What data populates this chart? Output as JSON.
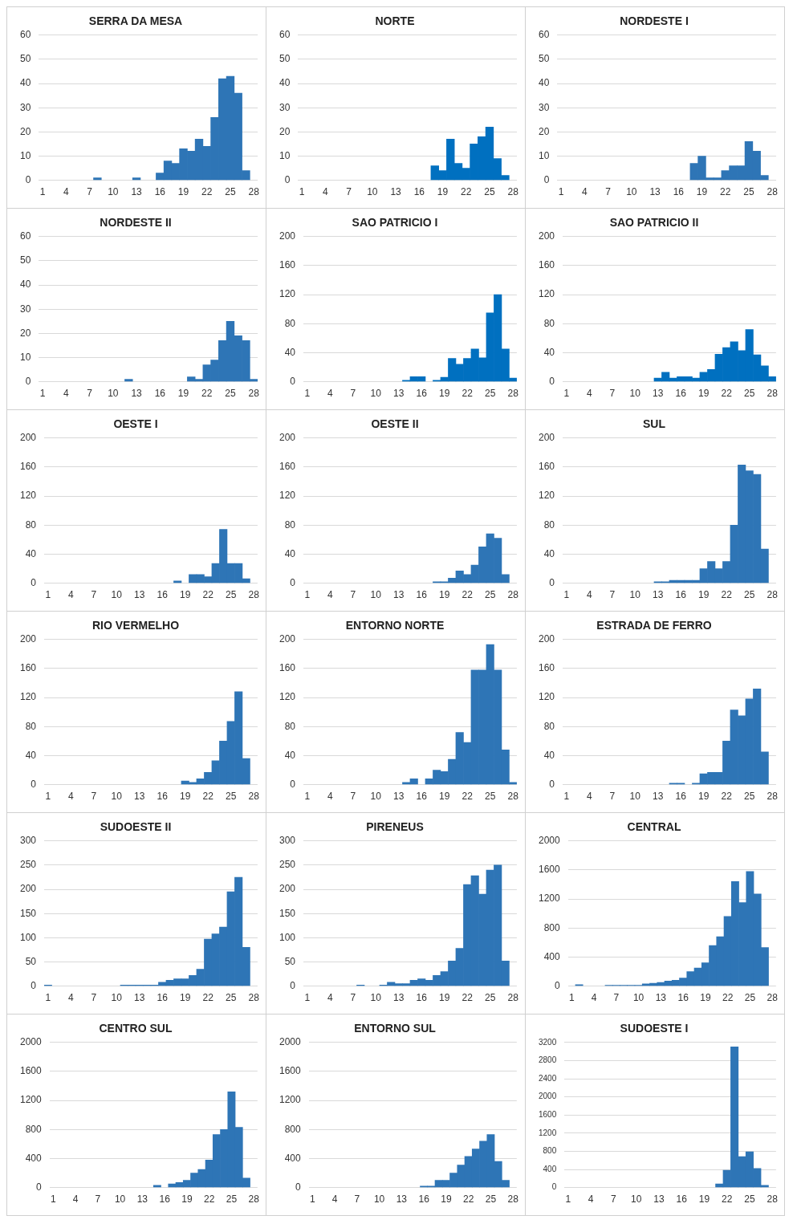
{
  "chart_data": [
    {
      "type": "bar",
      "title": "SERRA DA MESA",
      "color": "#2e75b6",
      "grid": "y",
      "ylim": [
        0,
        60
      ],
      "yticks": [
        0,
        10,
        20,
        30,
        40,
        50,
        60
      ],
      "categories": [
        "1",
        null,
        null,
        "4",
        null,
        null,
        "7",
        null,
        null,
        "10",
        null,
        null,
        "13",
        null,
        null,
        "16",
        null,
        null,
        "19",
        null,
        null,
        "22",
        null,
        null,
        "25",
        null,
        null,
        "28"
      ],
      "values": [
        null,
        null,
        null,
        null,
        null,
        null,
        null,
        1,
        null,
        null,
        null,
        null,
        1,
        null,
        null,
        3,
        8,
        7,
        13,
        12,
        17,
        14,
        26,
        42,
        43,
        36,
        4,
        null
      ]
    },
    {
      "type": "bar",
      "title": "NORTE",
      "color": "#0070c0",
      "grid": "y",
      "ylim": [
        0,
        60
      ],
      "yticks": [
        0,
        10,
        20,
        30,
        40,
        50,
        60
      ],
      "categories": [
        "1",
        null,
        null,
        "4",
        null,
        null,
        "7",
        null,
        null,
        "10",
        null,
        null,
        "13",
        null,
        null,
        "16",
        null,
        null,
        "19",
        null,
        null,
        "22",
        null,
        null,
        "25",
        null,
        null,
        "28"
      ],
      "values": [
        null,
        null,
        null,
        null,
        null,
        null,
        null,
        null,
        null,
        null,
        null,
        null,
        null,
        null,
        null,
        null,
        null,
        6,
        4,
        17,
        7,
        5,
        15,
        18,
        22,
        9,
        2,
        null
      ]
    },
    {
      "type": "bar",
      "title": "NORDESTE I",
      "color": "#2e75b6",
      "grid": "y",
      "ylim": [
        0,
        60
      ],
      "yticks": [
        0,
        10,
        20,
        30,
        40,
        50,
        60
      ],
      "categories": [
        "1",
        null,
        null,
        "4",
        null,
        null,
        "7",
        null,
        null,
        "10",
        null,
        null,
        "13",
        null,
        null,
        "16",
        null,
        null,
        "19",
        null,
        null,
        "22",
        null,
        null,
        "25",
        null,
        null,
        "28"
      ],
      "values": [
        null,
        null,
        null,
        null,
        null,
        null,
        null,
        null,
        null,
        null,
        null,
        null,
        null,
        null,
        null,
        null,
        null,
        7,
        10,
        1,
        1,
        4,
        6,
        6,
        16,
        12,
        2,
        null
      ]
    },
    {
      "type": "bar",
      "title": "NORDESTE II",
      "color": "#2e75b6",
      "grid": "y",
      "ylim": [
        0,
        60
      ],
      "yticks": [
        0,
        10,
        20,
        30,
        40,
        50,
        60
      ],
      "categories": [
        "1",
        null,
        null,
        "4",
        null,
        null,
        "7",
        null,
        null,
        "10",
        null,
        null,
        "13",
        null,
        null,
        "16",
        null,
        null,
        "19",
        null,
        null,
        "22",
        null,
        null,
        "25",
        null,
        null,
        "28"
      ],
      "values": [
        null,
        null,
        null,
        null,
        null,
        null,
        null,
        null,
        null,
        null,
        null,
        1,
        null,
        null,
        null,
        null,
        null,
        null,
        null,
        2,
        1,
        7,
        9,
        17,
        25,
        19,
        17,
        1
      ]
    },
    {
      "type": "bar",
      "title": "SAO PATRICIO I",
      "color": "#0070c0",
      "grid": "y",
      "ylim": [
        0,
        200
      ],
      "yticks": [
        0,
        40,
        80,
        120,
        160,
        200
      ],
      "categories": [
        "1",
        null,
        null,
        "4",
        null,
        null,
        "7",
        null,
        null,
        "10",
        null,
        null,
        "13",
        null,
        null,
        "16",
        null,
        null,
        "19",
        null,
        null,
        "22",
        null,
        null,
        "25",
        null,
        null,
        "28"
      ],
      "values": [
        null,
        null,
        null,
        null,
        null,
        null,
        null,
        null,
        null,
        null,
        null,
        null,
        null,
        2,
        7,
        7,
        null,
        2,
        6,
        32,
        24,
        32,
        45,
        33,
        95,
        120,
        45,
        5
      ]
    },
    {
      "type": "bar",
      "title": "SAO PATRICIO II",
      "color": "#0070c0",
      "grid": "y",
      "ylim": [
        0,
        200
      ],
      "yticks": [
        0,
        40,
        80,
        120,
        160,
        200
      ],
      "categories": [
        "1",
        null,
        null,
        "4",
        null,
        null,
        "7",
        null,
        null,
        "10",
        null,
        null,
        "13",
        null,
        null,
        "16",
        null,
        null,
        "19",
        null,
        null,
        "22",
        null,
        null,
        "25",
        null,
        null,
        "28"
      ],
      "values": [
        null,
        null,
        null,
        null,
        null,
        null,
        null,
        null,
        null,
        null,
        null,
        null,
        5,
        13,
        5,
        7,
        7,
        5,
        13,
        17,
        38,
        47,
        55,
        43,
        72,
        37,
        22,
        7
      ]
    },
    {
      "type": "bar",
      "title": "OESTE I",
      "color": "#2e75b6",
      "grid": "y",
      "ylim": [
        0,
        200
      ],
      "yticks": [
        0,
        40,
        80,
        120,
        160,
        200
      ],
      "categories": [
        "1",
        null,
        null,
        "4",
        null,
        null,
        "7",
        null,
        null,
        "10",
        null,
        null,
        "13",
        null,
        null,
        "16",
        null,
        null,
        "19",
        null,
        null,
        "22",
        null,
        null,
        "25",
        null,
        null,
        "28"
      ],
      "values": [
        null,
        null,
        null,
        null,
        null,
        null,
        null,
        null,
        null,
        null,
        null,
        null,
        null,
        null,
        null,
        null,
        null,
        3,
        null,
        12,
        12,
        9,
        27,
        74,
        27,
        27,
        6,
        null
      ]
    },
    {
      "type": "bar",
      "title": "OESTE II",
      "color": "#2e75b6",
      "grid": "y",
      "ylim": [
        0,
        200
      ],
      "yticks": [
        0,
        40,
        80,
        120,
        160,
        200
      ],
      "categories": [
        "1",
        null,
        null,
        "4",
        null,
        null,
        "7",
        null,
        null,
        "10",
        null,
        null,
        "13",
        null,
        null,
        "16",
        null,
        null,
        "19",
        null,
        null,
        "22",
        null,
        null,
        "25",
        null,
        null,
        "28"
      ],
      "values": [
        null,
        null,
        null,
        null,
        null,
        null,
        null,
        null,
        null,
        null,
        null,
        null,
        null,
        null,
        null,
        null,
        null,
        2,
        2,
        7,
        17,
        12,
        25,
        50,
        68,
        62,
        12,
        null
      ]
    },
    {
      "type": "bar",
      "title": "SUL",
      "color": "#2e75b6",
      "grid": "y",
      "ylim": [
        0,
        200
      ],
      "yticks": [
        0,
        40,
        80,
        120,
        160,
        200
      ],
      "categories": [
        "1",
        null,
        null,
        "4",
        null,
        null,
        "7",
        null,
        null,
        "10",
        null,
        null,
        "13",
        null,
        null,
        "16",
        null,
        null,
        "19",
        null,
        null,
        "22",
        null,
        null,
        "25",
        null,
        null,
        "28"
      ],
      "values": [
        null,
        null,
        null,
        null,
        null,
        null,
        null,
        null,
        null,
        null,
        null,
        null,
        2,
        2,
        4,
        4,
        4,
        4,
        20,
        30,
        20,
        30,
        80,
        163,
        155,
        150,
        47,
        null
      ]
    },
    {
      "type": "bar",
      "title": "RIO VERMELHO",
      "color": "#2e75b6",
      "grid": "y",
      "ylim": [
        0,
        200
      ],
      "yticks": [
        0,
        40,
        80,
        120,
        160,
        200
      ],
      "categories": [
        "1",
        null,
        null,
        "4",
        null,
        null,
        "7",
        null,
        null,
        "10",
        null,
        null,
        "13",
        null,
        null,
        "16",
        null,
        null,
        "19",
        null,
        null,
        "22",
        null,
        null,
        "25",
        null,
        null,
        "28"
      ],
      "values": [
        null,
        null,
        null,
        null,
        null,
        null,
        null,
        null,
        null,
        null,
        null,
        null,
        null,
        null,
        null,
        null,
        null,
        null,
        5,
        3,
        8,
        17,
        33,
        60,
        87,
        128,
        36,
        null
      ]
    },
    {
      "type": "bar",
      "title": "ENTORNO NORTE",
      "color": "#2e75b6",
      "grid": "y",
      "ylim": [
        0,
        200
      ],
      "yticks": [
        0,
        40,
        80,
        120,
        160,
        200
      ],
      "categories": [
        "1",
        null,
        null,
        "4",
        null,
        null,
        "7",
        null,
        null,
        "10",
        null,
        null,
        "13",
        null,
        null,
        "16",
        null,
        null,
        "19",
        null,
        null,
        "22",
        null,
        null,
        "25",
        null,
        null,
        "28"
      ],
      "values": [
        null,
        null,
        null,
        null,
        null,
        null,
        null,
        null,
        null,
        null,
        null,
        null,
        null,
        3,
        8,
        null,
        8,
        20,
        18,
        35,
        72,
        58,
        158,
        158,
        193,
        158,
        48,
        3
      ]
    },
    {
      "type": "bar",
      "title": "ESTRADA DE FERRO",
      "color": "#2e75b6",
      "grid": "y",
      "ylim": [
        0,
        200
      ],
      "yticks": [
        0,
        40,
        80,
        120,
        160,
        200
      ],
      "categories": [
        "1",
        null,
        null,
        "4",
        null,
        null,
        "7",
        null,
        null,
        "10",
        null,
        null,
        "13",
        null,
        null,
        "16",
        null,
        null,
        "19",
        null,
        null,
        "22",
        null,
        null,
        "25",
        null,
        null,
        "28"
      ],
      "values": [
        null,
        null,
        null,
        null,
        null,
        null,
        null,
        null,
        null,
        null,
        null,
        null,
        null,
        null,
        2,
        2,
        null,
        2,
        15,
        17,
        17,
        60,
        103,
        95,
        118,
        132,
        45,
        null
      ]
    },
    {
      "type": "bar",
      "title": "SUDOESTE II",
      "color": "#2e75b6",
      "grid": "y",
      "ylim": [
        0,
        300
      ],
      "yticks": [
        0,
        50,
        100,
        150,
        200,
        250,
        300
      ],
      "categories": [
        "1",
        null,
        null,
        "4",
        null,
        null,
        "7",
        null,
        null,
        "10",
        null,
        null,
        "13",
        null,
        null,
        "16",
        null,
        null,
        "19",
        null,
        null,
        "22",
        null,
        null,
        "25",
        null,
        null,
        "28"
      ],
      "values": [
        2,
        null,
        null,
        null,
        null,
        null,
        null,
        null,
        null,
        null,
        2,
        2,
        2,
        2,
        2,
        8,
        12,
        15,
        15,
        22,
        35,
        97,
        108,
        122,
        195,
        225,
        80,
        null
      ]
    },
    {
      "type": "bar",
      "title": "PIRENEUS",
      "color": "#2e75b6",
      "grid": "y",
      "ylim": [
        0,
        300
      ],
      "yticks": [
        0,
        50,
        100,
        150,
        200,
        250,
        300
      ],
      "categories": [
        "1",
        null,
        null,
        "4",
        null,
        null,
        "7",
        null,
        null,
        "10",
        null,
        null,
        "13",
        null,
        null,
        "16",
        null,
        null,
        "19",
        null,
        null,
        "22",
        null,
        null,
        "25",
        null,
        null,
        "28"
      ],
      "values": [
        null,
        null,
        null,
        null,
        null,
        null,
        null,
        2,
        null,
        null,
        2,
        8,
        5,
        5,
        12,
        15,
        12,
        22,
        30,
        52,
        78,
        210,
        228,
        190,
        240,
        250,
        52,
        null
      ]
    },
    {
      "type": "bar",
      "title": "CENTRAL",
      "color": "#2e75b6",
      "grid": "y",
      "ylim": [
        0,
        2000
      ],
      "yticks": [
        0,
        400,
        800,
        1200,
        1600,
        2000
      ],
      "categories": [
        "1",
        null,
        null,
        "4",
        null,
        null,
        "7",
        null,
        null,
        "10",
        null,
        null,
        "13",
        null,
        null,
        "16",
        null,
        null,
        "19",
        null,
        null,
        "22",
        null,
        null,
        "25",
        null,
        null,
        "28"
      ],
      "values": [
        null,
        20,
        null,
        null,
        null,
        10,
        10,
        10,
        10,
        10,
        30,
        40,
        50,
        70,
        80,
        110,
        200,
        250,
        320,
        560,
        680,
        960,
        1440,
        1150,
        1580,
        1270,
        530,
        null
      ]
    },
    {
      "type": "bar",
      "title": "CENTRO SUL",
      "color": "#2e75b6",
      "grid": "y",
      "ylim": [
        0,
        2000
      ],
      "yticks": [
        0,
        400,
        800,
        1200,
        1600,
        2000
      ],
      "categories": [
        "1",
        null,
        null,
        "4",
        null,
        null,
        "7",
        null,
        null,
        "10",
        null,
        null,
        "13",
        null,
        null,
        "16",
        null,
        null,
        "19",
        null,
        null,
        "22",
        null,
        null,
        "25",
        null,
        null,
        "28"
      ],
      "values": [
        null,
        null,
        null,
        null,
        null,
        null,
        null,
        null,
        null,
        null,
        null,
        null,
        null,
        null,
        30,
        null,
        50,
        70,
        100,
        200,
        250,
        380,
        730,
        800,
        1320,
        830,
        130,
        null
      ]
    },
    {
      "type": "bar",
      "title": "ENTORNO SUL",
      "color": "#2e75b6",
      "grid": "y",
      "ylim": [
        0,
        2000
      ],
      "yticks": [
        0,
        400,
        800,
        1200,
        1600,
        2000
      ],
      "categories": [
        "1",
        null,
        null,
        "4",
        null,
        null,
        "7",
        null,
        null,
        "10",
        null,
        null,
        "13",
        null,
        null,
        "16",
        null,
        null,
        "19",
        null,
        null,
        "22",
        null,
        null,
        "25",
        null,
        null,
        "28"
      ],
      "values": [
        null,
        null,
        null,
        null,
        null,
        null,
        null,
        null,
        null,
        null,
        null,
        null,
        null,
        null,
        null,
        20,
        20,
        100,
        100,
        200,
        310,
        430,
        530,
        640,
        730,
        360,
        100,
        null
      ]
    },
    {
      "type": "bar",
      "title": "SUDOESTE I",
      "color": "#2e75b6",
      "grid": "y",
      "ylim": [
        0,
        3200
      ],
      "yticks": [
        0,
        400,
        800,
        1200,
        1600,
        2000,
        2400,
        2800,
        3200
      ],
      "categories": [
        "1",
        null,
        null,
        "4",
        null,
        null,
        "7",
        null,
        null,
        "10",
        null,
        null,
        "13",
        null,
        null,
        "16",
        null,
        null,
        "19",
        null,
        null,
        "22",
        null,
        null,
        "25",
        null,
        null,
        "28"
      ],
      "values": [
        null,
        null,
        null,
        null,
        null,
        null,
        null,
        null,
        null,
        null,
        null,
        null,
        null,
        null,
        null,
        null,
        null,
        null,
        null,
        null,
        80,
        380,
        3100,
        680,
        790,
        420,
        50,
        null
      ]
    }
  ]
}
